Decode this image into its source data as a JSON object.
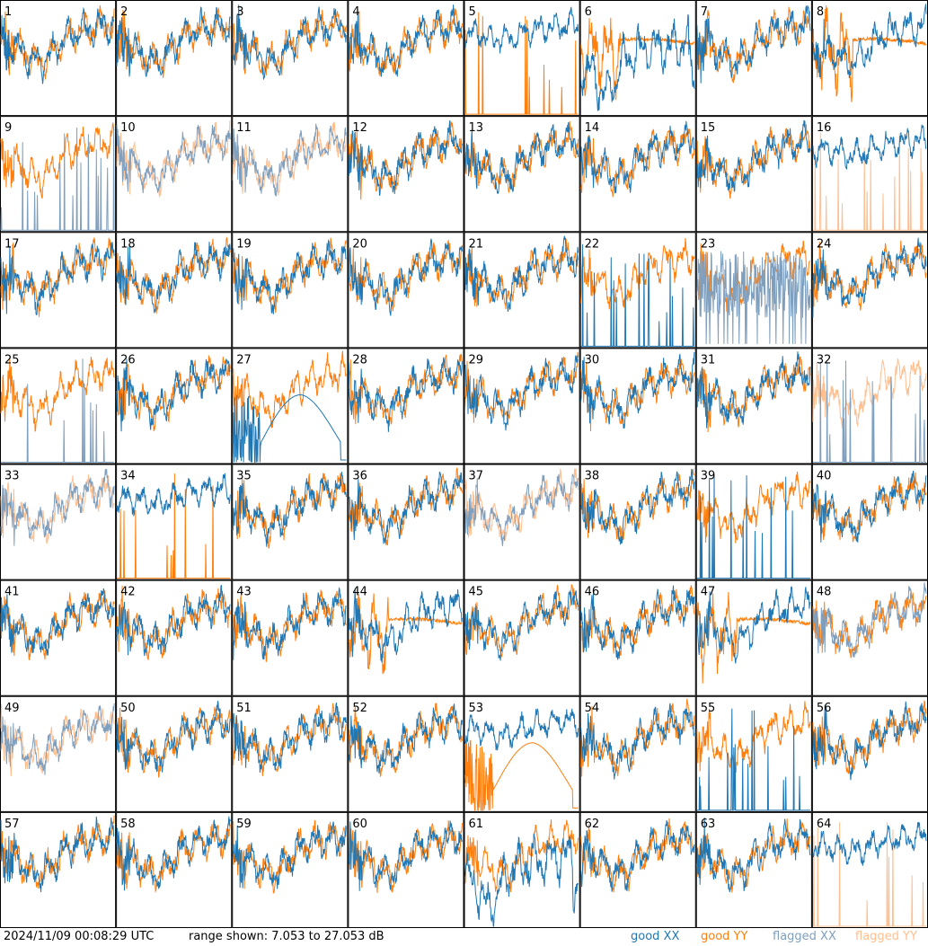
{
  "footer": {
    "timestamp": "2024/11/09 00:08:29 UTC",
    "range_text": "range shown: 7.053 to 27.053 dB",
    "legend": {
      "good_xx": "good XX",
      "good_yy": "good YY",
      "flagged_xx": "flagged XX",
      "flagged_yy": "flagged YY"
    }
  },
  "colors": {
    "good_xx": "#1f77b4",
    "good_yy": "#ff7f0e",
    "flagged_xx": "#7f9fbf",
    "flagged_yy": "#ffbf8f"
  },
  "chart_data": {
    "type": "line",
    "grid_layout": {
      "rows": 8,
      "cols": 8
    },
    "ylim": [
      7.053,
      27.053
    ],
    "yunit": "dB",
    "panels": [
      {
        "id": "1",
        "xx": "good",
        "yy": "good",
        "xx_shape": "normal",
        "yy_shape": "normal"
      },
      {
        "id": "2",
        "xx": "good",
        "yy": "good",
        "xx_shape": "normal",
        "yy_shape": "normal"
      },
      {
        "id": "3",
        "xx": "good",
        "yy": "good",
        "xx_shape": "normal",
        "yy_shape": "normal"
      },
      {
        "id": "4",
        "xx": "good",
        "yy": "good",
        "xx_shape": "normal",
        "yy_shape": "normal"
      },
      {
        "id": "5",
        "xx": "good",
        "yy": "good",
        "xx_shape": "high",
        "yy_shape": "spikes"
      },
      {
        "id": "6",
        "xx": "good",
        "yy": "good",
        "xx_shape": "deep",
        "yy_shape": "flatmid"
      },
      {
        "id": "7",
        "xx": "good",
        "yy": "good",
        "xx_shape": "normal",
        "yy_shape": "normal"
      },
      {
        "id": "8",
        "xx": "good",
        "yy": "good",
        "xx_shape": "normal",
        "yy_shape": "flatmid"
      },
      {
        "id": "9",
        "xx": "flagged",
        "yy": "good",
        "xx_shape": "spikes",
        "yy_shape": "normal"
      },
      {
        "id": "10",
        "xx": "flagged",
        "yy": "flagged",
        "xx_shape": "normal",
        "yy_shape": "normal"
      },
      {
        "id": "11",
        "xx": "flagged",
        "yy": "flagged",
        "xx_shape": "normal",
        "yy_shape": "normal"
      },
      {
        "id": "12",
        "xx": "good",
        "yy": "good",
        "xx_shape": "normal",
        "yy_shape": "normal"
      },
      {
        "id": "13",
        "xx": "good",
        "yy": "good",
        "xx_shape": "normal",
        "yy_shape": "normal"
      },
      {
        "id": "14",
        "xx": "good",
        "yy": "good",
        "xx_shape": "normal",
        "yy_shape": "normal"
      },
      {
        "id": "15",
        "xx": "good",
        "yy": "good",
        "xx_shape": "normal",
        "yy_shape": "normal"
      },
      {
        "id": "16",
        "xx": "good",
        "yy": "flagged",
        "xx_shape": "high",
        "yy_shape": "spikes"
      },
      {
        "id": "17",
        "xx": "good",
        "yy": "good",
        "xx_shape": "normal",
        "yy_shape": "normal"
      },
      {
        "id": "18",
        "xx": "good",
        "yy": "good",
        "xx_shape": "normal",
        "yy_shape": "normal"
      },
      {
        "id": "19",
        "xx": "good",
        "yy": "good",
        "xx_shape": "normal",
        "yy_shape": "normal"
      },
      {
        "id": "20",
        "xx": "good",
        "yy": "good",
        "xx_shape": "normal",
        "yy_shape": "normal"
      },
      {
        "id": "21",
        "xx": "good",
        "yy": "good",
        "xx_shape": "normal",
        "yy_shape": "normal"
      },
      {
        "id": "22",
        "xx": "good",
        "yy": "good",
        "xx_shape": "spikes",
        "yy_shape": "normal"
      },
      {
        "id": "23",
        "xx": "flagged",
        "yy": "good",
        "xx_shape": "noisy",
        "yy_shape": "normal"
      },
      {
        "id": "24",
        "xx": "good",
        "yy": "good",
        "xx_shape": "normal",
        "yy_shape": "normal"
      },
      {
        "id": "25",
        "xx": "flagged",
        "yy": "good",
        "xx_shape": "spikes",
        "yy_shape": "normal"
      },
      {
        "id": "26",
        "xx": "good",
        "yy": "good",
        "xx_shape": "normal",
        "yy_shape": "normal"
      },
      {
        "id": "27",
        "xx": "good",
        "yy": "good",
        "xx_shape": "hump",
        "yy_shape": "normal"
      },
      {
        "id": "28",
        "xx": "good",
        "yy": "good",
        "xx_shape": "normal",
        "yy_shape": "normal"
      },
      {
        "id": "29",
        "xx": "good",
        "yy": "good",
        "xx_shape": "normal",
        "yy_shape": "normal"
      },
      {
        "id": "30",
        "xx": "good",
        "yy": "good",
        "xx_shape": "normal",
        "yy_shape": "normal"
      },
      {
        "id": "31",
        "xx": "good",
        "yy": "good",
        "xx_shape": "normal",
        "yy_shape": "normal"
      },
      {
        "id": "32",
        "xx": "flagged",
        "yy": "flagged",
        "xx_shape": "spikes",
        "yy_shape": "normal"
      },
      {
        "id": "33",
        "xx": "flagged",
        "yy": "flagged",
        "xx_shape": "normal",
        "yy_shape": "normal"
      },
      {
        "id": "34",
        "xx": "good",
        "yy": "good",
        "xx_shape": "high",
        "yy_shape": "spikes"
      },
      {
        "id": "35",
        "xx": "good",
        "yy": "good",
        "xx_shape": "normal",
        "yy_shape": "normal"
      },
      {
        "id": "36",
        "xx": "good",
        "yy": "good",
        "xx_shape": "normal",
        "yy_shape": "normal"
      },
      {
        "id": "37",
        "xx": "flagged",
        "yy": "flagged",
        "xx_shape": "normal",
        "yy_shape": "normal"
      },
      {
        "id": "38",
        "xx": "good",
        "yy": "good",
        "xx_shape": "normal",
        "yy_shape": "normal"
      },
      {
        "id": "39",
        "xx": "good",
        "yy": "good",
        "xx_shape": "spikes",
        "yy_shape": "normal"
      },
      {
        "id": "40",
        "xx": "good",
        "yy": "good",
        "xx_shape": "normal",
        "yy_shape": "normal"
      },
      {
        "id": "41",
        "xx": "good",
        "yy": "good",
        "xx_shape": "normal",
        "yy_shape": "normal"
      },
      {
        "id": "42",
        "xx": "good",
        "yy": "good",
        "xx_shape": "normal",
        "yy_shape": "normal"
      },
      {
        "id": "43",
        "xx": "good",
        "yy": "good",
        "xx_shape": "normal",
        "yy_shape": "normal"
      },
      {
        "id": "44",
        "xx": "good",
        "yy": "good",
        "xx_shape": "normal",
        "yy_shape": "flatmid"
      },
      {
        "id": "45",
        "xx": "good",
        "yy": "good",
        "xx_shape": "normal",
        "yy_shape": "normal"
      },
      {
        "id": "46",
        "xx": "good",
        "yy": "good",
        "xx_shape": "normal",
        "yy_shape": "normal"
      },
      {
        "id": "47",
        "xx": "good",
        "yy": "good",
        "xx_shape": "normal",
        "yy_shape": "flatmid"
      },
      {
        "id": "48",
        "xx": "flagged",
        "yy": "good",
        "xx_shape": "normal",
        "yy_shape": "normal"
      },
      {
        "id": "49",
        "xx": "flagged",
        "yy": "flagged",
        "xx_shape": "normal",
        "yy_shape": "normal"
      },
      {
        "id": "50",
        "xx": "good",
        "yy": "good",
        "xx_shape": "normal",
        "yy_shape": "normal"
      },
      {
        "id": "51",
        "xx": "good",
        "yy": "good",
        "xx_shape": "normal",
        "yy_shape": "normal"
      },
      {
        "id": "52",
        "xx": "good",
        "yy": "good",
        "xx_shape": "normal",
        "yy_shape": "normal"
      },
      {
        "id": "53",
        "xx": "good",
        "yy": "good",
        "xx_shape": "high",
        "yy_shape": "hump"
      },
      {
        "id": "54",
        "xx": "good",
        "yy": "good",
        "xx_shape": "normal",
        "yy_shape": "normal"
      },
      {
        "id": "55",
        "xx": "good",
        "yy": "good",
        "xx_shape": "spikes",
        "yy_shape": "normal"
      },
      {
        "id": "56",
        "xx": "good",
        "yy": "good",
        "xx_shape": "normal",
        "yy_shape": "normal"
      },
      {
        "id": "57",
        "xx": "good",
        "yy": "good",
        "xx_shape": "normal",
        "yy_shape": "normal"
      },
      {
        "id": "58",
        "xx": "good",
        "yy": "good",
        "xx_shape": "normal",
        "yy_shape": "normal"
      },
      {
        "id": "59",
        "xx": "good",
        "yy": "good",
        "xx_shape": "normal",
        "yy_shape": "normal"
      },
      {
        "id": "60",
        "xx": "good",
        "yy": "good",
        "xx_shape": "normal",
        "yy_shape": "normal"
      },
      {
        "id": "61",
        "xx": "good",
        "yy": "good",
        "xx_shape": "deep",
        "yy_shape": "normal"
      },
      {
        "id": "62",
        "xx": "good",
        "yy": "good",
        "xx_shape": "normal",
        "yy_shape": "normal"
      },
      {
        "id": "63",
        "xx": "good",
        "yy": "good",
        "xx_shape": "normal",
        "yy_shape": "normal"
      },
      {
        "id": "64",
        "xx": "good",
        "yy": "flagged",
        "xx_shape": "high",
        "yy_shape": "spikes"
      }
    ]
  }
}
